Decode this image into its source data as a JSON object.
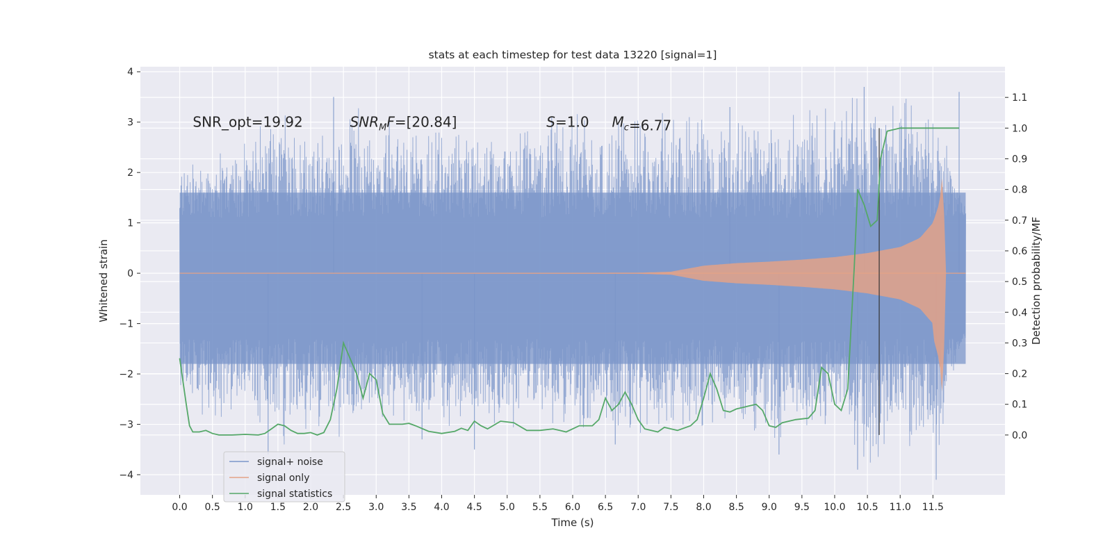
{
  "chart_data": {
    "type": "line",
    "title": "stats at each timestep for test data 13220 [signal=1]",
    "xlabel": "Time (s)",
    "ylabel": "Whitened strain",
    "y2label": "Detection probability/MF",
    "xlim": [
      -0.6,
      12.6
    ],
    "ylim": [
      -4.4,
      4.1
    ],
    "y2lim": [
      -0.195,
      1.2
    ],
    "xticks": [
      0.0,
      0.5,
      1.0,
      1.5,
      2.0,
      2.5,
      3.0,
      3.5,
      4.0,
      4.5,
      5.0,
      5.5,
      6.0,
      6.5,
      7.0,
      7.5,
      8.0,
      8.5,
      9.0,
      9.5,
      10.0,
      10.5,
      11.0,
      11.5
    ],
    "xtick_labels": [
      "0.0",
      "0.5",
      "1.0",
      "1.5",
      "2.0",
      "2.5",
      "3.0",
      "3.5",
      "4.0",
      "4.5",
      "5.0",
      "5.5",
      "6.0",
      "6.5",
      "7.0",
      "7.5",
      "8.0",
      "8.5",
      "9.0",
      "9.5",
      "10.0",
      "10.5",
      "11.0",
      "11.5"
    ],
    "yticks": [
      -4,
      -3,
      -2,
      -1,
      0,
      1,
      2,
      3,
      4
    ],
    "ytick_labels": [
      "−4",
      "−3",
      "−2",
      "−1",
      "0",
      "1",
      "2",
      "3",
      "4"
    ],
    "y2ticks": [
      0.0,
      0.1,
      0.2,
      0.3,
      0.4,
      0.5,
      0.6,
      0.7,
      0.8,
      0.9,
      1.0,
      1.1
    ],
    "y2tick_labels": [
      "0.0",
      "0.1",
      "0.2",
      "0.3",
      "0.4",
      "0.5",
      "0.6",
      "0.7",
      "0.8",
      "0.9",
      "1.0",
      "1.1"
    ],
    "grid": true,
    "legend_position": "lower-left",
    "annotations": [
      {
        "text": "SNR_opt=19.92",
        "x": 0.2,
        "y": 3.0
      },
      {
        "text": "=[20.84]",
        "math_base": "SNR",
        "math_sub": "M",
        "math_tail": "F",
        "x": 2.6,
        "y": 3.0
      },
      {
        "text": "=1.0",
        "math_base": "S",
        "x": 5.6,
        "y": 3.0
      },
      {
        "text": "=6.77",
        "math_base": "M",
        "math_sub": "c",
        "x": 6.6,
        "y": 3.0
      }
    ],
    "vline": {
      "x": 10.68,
      "y2_from": -0.0,
      "y2_to": 1.0,
      "color": "#333333"
    },
    "series": [
      {
        "name": "signal+ noise",
        "axis": "left",
        "color": "#7b96c9",
        "x_range": [
          0.0,
          12.0
        ],
        "envelope": {
          "t": [
            0.0,
            0.5,
            1.0,
            1.5,
            2.0,
            2.5,
            3.0,
            3.5,
            4.0,
            4.5,
            5.0,
            5.5,
            6.0,
            6.5,
            7.0,
            7.5,
            8.0,
            8.5,
            9.0,
            9.5,
            10.0,
            10.5,
            11.0,
            11.5,
            12.0
          ],
          "upper": [
            2.0,
            2.4,
            2.6,
            3.3,
            2.7,
            3.4,
            3.2,
            2.9,
            2.8,
            3.0,
            2.9,
            3.1,
            3.2,
            3.0,
            3.1,
            3.3,
            3.2,
            3.0,
            3.1,
            3.4,
            3.3,
            3.7,
            3.5,
            3.6,
            1.3
          ],
          "lower": [
            -2.4,
            -3.0,
            -2.8,
            -3.5,
            -3.1,
            -3.3,
            -2.9,
            -3.0,
            -3.1,
            -3.0,
            -3.2,
            -2.9,
            -3.1,
            -3.0,
            -3.2,
            -3.0,
            -3.1,
            -3.0,
            -3.5,
            -3.3,
            -3.0,
            -3.9,
            -3.3,
            -4.0,
            -1.0
          ]
        },
        "spikes": [
          {
            "x": 1.35,
            "y": -3.6
          },
          {
            "x": 2.35,
            "y": 3.5
          },
          {
            "x": 3.7,
            "y": -3.3
          },
          {
            "x": 4.5,
            "y": -3.5
          },
          {
            "x": 6.65,
            "y": -3.4
          },
          {
            "x": 8.4,
            "y": 3.3
          },
          {
            "x": 9.15,
            "y": -3.6
          },
          {
            "x": 10.35,
            "y": -3.9
          },
          {
            "x": 10.45,
            "y": 3.7
          },
          {
            "x": 11.55,
            "y": -4.1
          },
          {
            "x": 11.9,
            "y": 3.6
          }
        ]
      },
      {
        "name": "signal only",
        "axis": "left",
        "color": "#e3a287",
        "x_range": [
          0.0,
          12.0
        ],
        "envelope": {
          "t": [
            0.0,
            7.0,
            7.5,
            8.0,
            8.5,
            9.0,
            9.5,
            10.0,
            10.5,
            11.0,
            11.3,
            11.5,
            11.6,
            11.65,
            11.7,
            12.0
          ],
          "upper": [
            0.0,
            0.01,
            0.03,
            0.15,
            0.2,
            0.23,
            0.27,
            0.32,
            0.4,
            0.52,
            0.7,
            1.0,
            1.4,
            2.0,
            0.0,
            0.0
          ]
        }
      },
      {
        "name": "signal statistics",
        "axis": "right",
        "color": "#55a868",
        "points": [
          [
            0.0,
            0.25
          ],
          [
            0.1,
            0.1
          ],
          [
            0.15,
            0.03
          ],
          [
            0.2,
            0.01
          ],
          [
            0.3,
            0.01
          ],
          [
            0.4,
            0.015
          ],
          [
            0.5,
            0.005
          ],
          [
            0.6,
            0.0
          ],
          [
            0.8,
            0.0
          ],
          [
            1.0,
            0.002
          ],
          [
            1.2,
            0.0
          ],
          [
            1.3,
            0.005
          ],
          [
            1.4,
            0.02
          ],
          [
            1.5,
            0.035
          ],
          [
            1.6,
            0.03
          ],
          [
            1.7,
            0.015
          ],
          [
            1.8,
            0.005
          ],
          [
            1.9,
            0.005
          ],
          [
            2.0,
            0.008
          ],
          [
            2.1,
            0.0
          ],
          [
            2.2,
            0.008
          ],
          [
            2.3,
            0.05
          ],
          [
            2.4,
            0.15
          ],
          [
            2.5,
            0.3
          ],
          [
            2.6,
            0.25
          ],
          [
            2.7,
            0.2
          ],
          [
            2.8,
            0.12
          ],
          [
            2.9,
            0.2
          ],
          [
            3.0,
            0.18
          ],
          [
            3.1,
            0.07
          ],
          [
            3.2,
            0.035
          ],
          [
            3.4,
            0.035
          ],
          [
            3.5,
            0.038
          ],
          [
            3.6,
            0.03
          ],
          [
            3.8,
            0.012
          ],
          [
            4.0,
            0.005
          ],
          [
            4.2,
            0.012
          ],
          [
            4.3,
            0.022
          ],
          [
            4.4,
            0.015
          ],
          [
            4.5,
            0.045
          ],
          [
            4.6,
            0.03
          ],
          [
            4.7,
            0.02
          ],
          [
            4.9,
            0.045
          ],
          [
            5.1,
            0.04
          ],
          [
            5.3,
            0.015
          ],
          [
            5.5,
            0.015
          ],
          [
            5.7,
            0.02
          ],
          [
            5.8,
            0.015
          ],
          [
            5.9,
            0.01
          ],
          [
            6.0,
            0.02
          ],
          [
            6.1,
            0.03
          ],
          [
            6.3,
            0.03
          ],
          [
            6.4,
            0.05
          ],
          [
            6.5,
            0.12
          ],
          [
            6.6,
            0.08
          ],
          [
            6.7,
            0.1
          ],
          [
            6.8,
            0.14
          ],
          [
            6.9,
            0.1
          ],
          [
            7.0,
            0.05
          ],
          [
            7.1,
            0.02
          ],
          [
            7.3,
            0.01
          ],
          [
            7.4,
            0.025
          ],
          [
            7.5,
            0.02
          ],
          [
            7.6,
            0.015
          ],
          [
            7.8,
            0.03
          ],
          [
            7.9,
            0.05
          ],
          [
            8.0,
            0.12
          ],
          [
            8.1,
            0.2
          ],
          [
            8.2,
            0.15
          ],
          [
            8.3,
            0.08
          ],
          [
            8.4,
            0.075
          ],
          [
            8.5,
            0.085
          ],
          [
            8.6,
            0.09
          ],
          [
            8.7,
            0.095
          ],
          [
            8.8,
            0.1
          ],
          [
            8.9,
            0.08
          ],
          [
            9.0,
            0.03
          ],
          [
            9.1,
            0.025
          ],
          [
            9.2,
            0.04
          ],
          [
            9.4,
            0.05
          ],
          [
            9.6,
            0.055
          ],
          [
            9.7,
            0.08
          ],
          [
            9.8,
            0.22
          ],
          [
            9.9,
            0.2
          ],
          [
            10.0,
            0.1
          ],
          [
            10.1,
            0.08
          ],
          [
            10.2,
            0.15
          ],
          [
            10.3,
            0.55
          ],
          [
            10.35,
            0.8
          ],
          [
            10.45,
            0.75
          ],
          [
            10.55,
            0.68
          ],
          [
            10.65,
            0.7
          ],
          [
            10.7,
            0.9
          ],
          [
            10.8,
            0.99
          ],
          [
            11.0,
            1.0
          ],
          [
            11.5,
            1.0
          ],
          [
            11.9,
            1.0
          ]
        ]
      }
    ]
  }
}
